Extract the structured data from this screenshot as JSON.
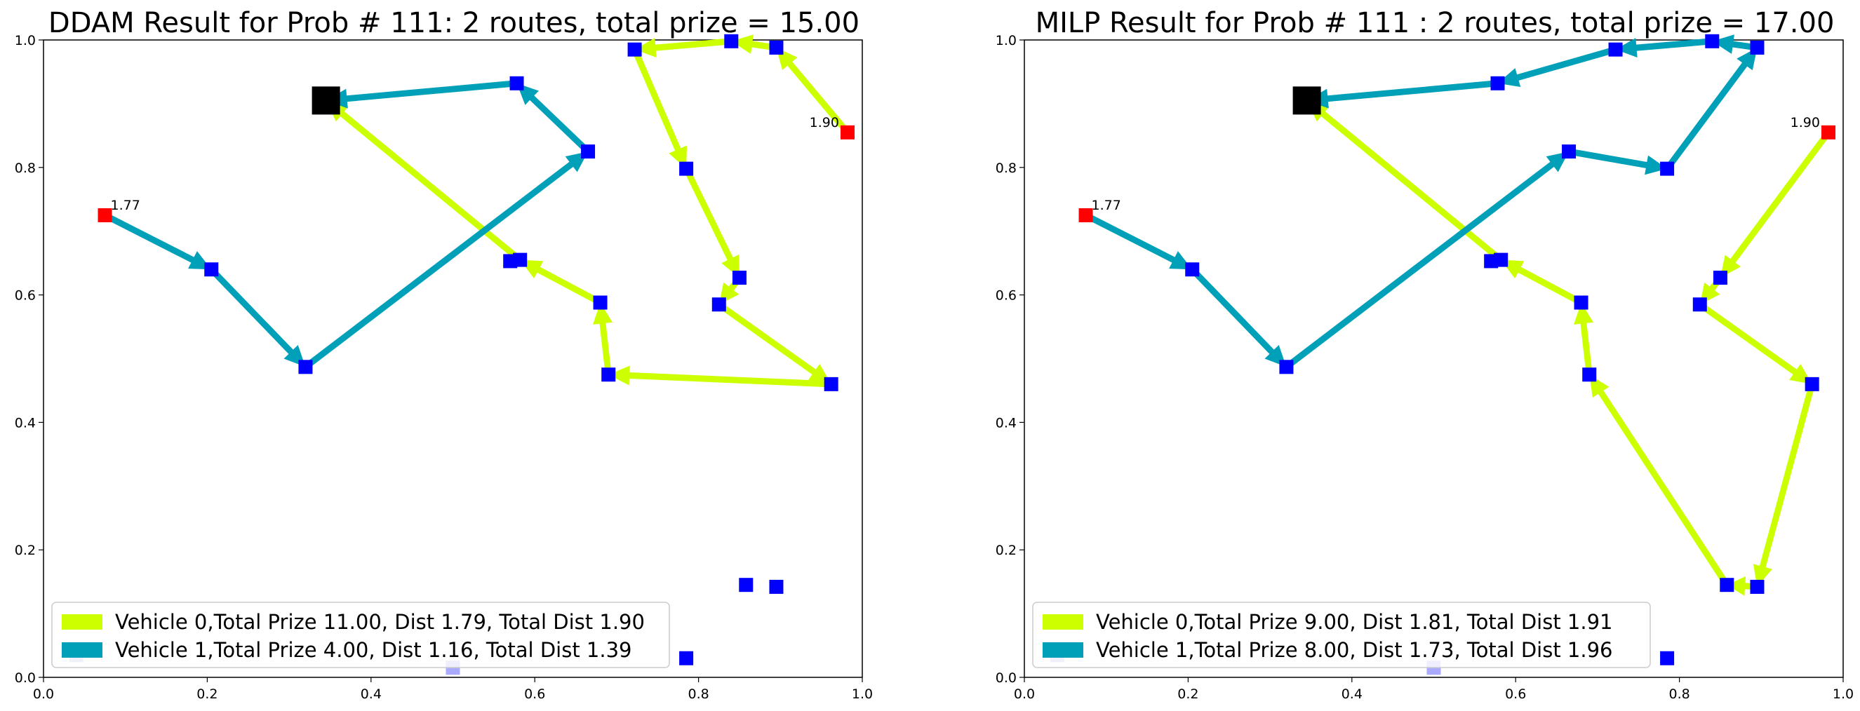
{
  "chart_data": [
    {
      "type": "scatter",
      "title": "DDAM Result for Prob # 111: 2 routes, total prize = 15.00",
      "xlim": [
        0,
        1
      ],
      "ylim": [
        0,
        1
      ],
      "x_ticks": [
        "0.0",
        "0.2",
        "0.4",
        "0.6",
        "0.8",
        "1.0"
      ],
      "y_ticks": [
        "0.0",
        "0.2",
        "0.4",
        "0.6",
        "0.8",
        "1.0"
      ],
      "depot": {
        "x": 0.345,
        "y": 0.905
      },
      "nodes": [
        {
          "x": 0.075,
          "y": 0.725,
          "color": "red",
          "label": "1.77"
        },
        {
          "x": 0.982,
          "y": 0.855,
          "color": "red",
          "label": "1.90"
        },
        {
          "x": 0.205,
          "y": 0.64
        },
        {
          "x": 0.32,
          "y": 0.487
        },
        {
          "x": 0.665,
          "y": 0.825
        },
        {
          "x": 0.578,
          "y": 0.932
        },
        {
          "x": 0.722,
          "y": 0.985
        },
        {
          "x": 0.84,
          "y": 0.998
        },
        {
          "x": 0.895,
          "y": 0.988
        },
        {
          "x": 0.785,
          "y": 0.798
        },
        {
          "x": 0.85,
          "y": 0.627
        },
        {
          "x": 0.825,
          "y": 0.585
        },
        {
          "x": 0.962,
          "y": 0.46
        },
        {
          "x": 0.69,
          "y": 0.475
        },
        {
          "x": 0.68,
          "y": 0.588
        },
        {
          "x": 0.582,
          "y": 0.655
        },
        {
          "x": 0.57,
          "y": 0.653
        },
        {
          "x": 0.858,
          "y": 0.145
        },
        {
          "x": 0.895,
          "y": 0.142
        },
        {
          "x": 0.785,
          "y": 0.03
        },
        {
          "x": 0.5,
          "y": 0.015
        },
        {
          "x": 0.04,
          "y": 0.035
        }
      ],
      "routes": [
        {
          "name": "Vehicle 0,Total Prize 11.00, Dist 1.79, Total Dist 1.90",
          "color": "#ccff00",
          "points": [
            [
              0.982,
              0.855
            ],
            [
              0.895,
              0.988
            ],
            [
              0.84,
              0.998
            ],
            [
              0.722,
              0.985
            ],
            [
              0.785,
              0.798
            ],
            [
              0.85,
              0.627
            ],
            [
              0.825,
              0.585
            ],
            [
              0.962,
              0.46
            ],
            [
              0.69,
              0.475
            ],
            [
              0.68,
              0.588
            ],
            [
              0.582,
              0.655
            ],
            [
              0.345,
              0.905
            ]
          ]
        },
        {
          "name": "Vehicle 1,Total Prize 4.00, Dist 1.16, Total Dist 1.39",
          "color": "#00a0b8",
          "points": [
            [
              0.075,
              0.725
            ],
            [
              0.205,
              0.64
            ],
            [
              0.32,
              0.487
            ],
            [
              0.665,
              0.825
            ],
            [
              0.578,
              0.932
            ],
            [
              0.345,
              0.905
            ]
          ]
        }
      ],
      "legend_position": "lower-left"
    },
    {
      "type": "scatter",
      "title": "MILP Result for Prob # 111 : 2 routes, total prize = 17.00",
      "xlim": [
        0,
        1
      ],
      "ylim": [
        0,
        1
      ],
      "x_ticks": [
        "0.0",
        "0.2",
        "0.4",
        "0.6",
        "0.8",
        "1.0"
      ],
      "y_ticks": [
        "0.0",
        "0.2",
        "0.4",
        "0.6",
        "0.8",
        "1.0"
      ],
      "depot": {
        "x": 0.345,
        "y": 0.905
      },
      "nodes": [
        {
          "x": 0.075,
          "y": 0.725,
          "color": "red",
          "label": "1.77"
        },
        {
          "x": 0.982,
          "y": 0.855,
          "color": "red",
          "label": "1.90"
        },
        {
          "x": 0.205,
          "y": 0.64
        },
        {
          "x": 0.32,
          "y": 0.487
        },
        {
          "x": 0.665,
          "y": 0.825
        },
        {
          "x": 0.578,
          "y": 0.932
        },
        {
          "x": 0.722,
          "y": 0.985
        },
        {
          "x": 0.84,
          "y": 0.998
        },
        {
          "x": 0.895,
          "y": 0.988
        },
        {
          "x": 0.785,
          "y": 0.798
        },
        {
          "x": 0.85,
          "y": 0.627
        },
        {
          "x": 0.825,
          "y": 0.585
        },
        {
          "x": 0.962,
          "y": 0.46
        },
        {
          "x": 0.69,
          "y": 0.475
        },
        {
          "x": 0.68,
          "y": 0.588
        },
        {
          "x": 0.582,
          "y": 0.655
        },
        {
          "x": 0.57,
          "y": 0.653
        },
        {
          "x": 0.858,
          "y": 0.145
        },
        {
          "x": 0.895,
          "y": 0.142
        },
        {
          "x": 0.785,
          "y": 0.03
        },
        {
          "x": 0.5,
          "y": 0.015
        },
        {
          "x": 0.04,
          "y": 0.035
        }
      ],
      "routes": [
        {
          "name": "Vehicle 0,Total Prize 9.00, Dist 1.81, Total Dist 1.91",
          "color": "#ccff00",
          "points": [
            [
              0.982,
              0.855
            ],
            [
              0.85,
              0.627
            ],
            [
              0.825,
              0.585
            ],
            [
              0.962,
              0.46
            ],
            [
              0.895,
              0.142
            ],
            [
              0.858,
              0.145
            ],
            [
              0.69,
              0.475
            ],
            [
              0.68,
              0.588
            ],
            [
              0.582,
              0.655
            ],
            [
              0.345,
              0.905
            ]
          ]
        },
        {
          "name": "Vehicle 1,Total Prize 8.00, Dist 1.73, Total Dist 1.96",
          "color": "#00a0b8",
          "points": [
            [
              0.075,
              0.725
            ],
            [
              0.205,
              0.64
            ],
            [
              0.32,
              0.487
            ],
            [
              0.665,
              0.825
            ],
            [
              0.785,
              0.798
            ],
            [
              0.895,
              0.988
            ],
            [
              0.84,
              0.998
            ],
            [
              0.722,
              0.985
            ],
            [
              0.578,
              0.932
            ],
            [
              0.345,
              0.905
            ]
          ]
        }
      ],
      "legend_position": "lower-left"
    }
  ]
}
